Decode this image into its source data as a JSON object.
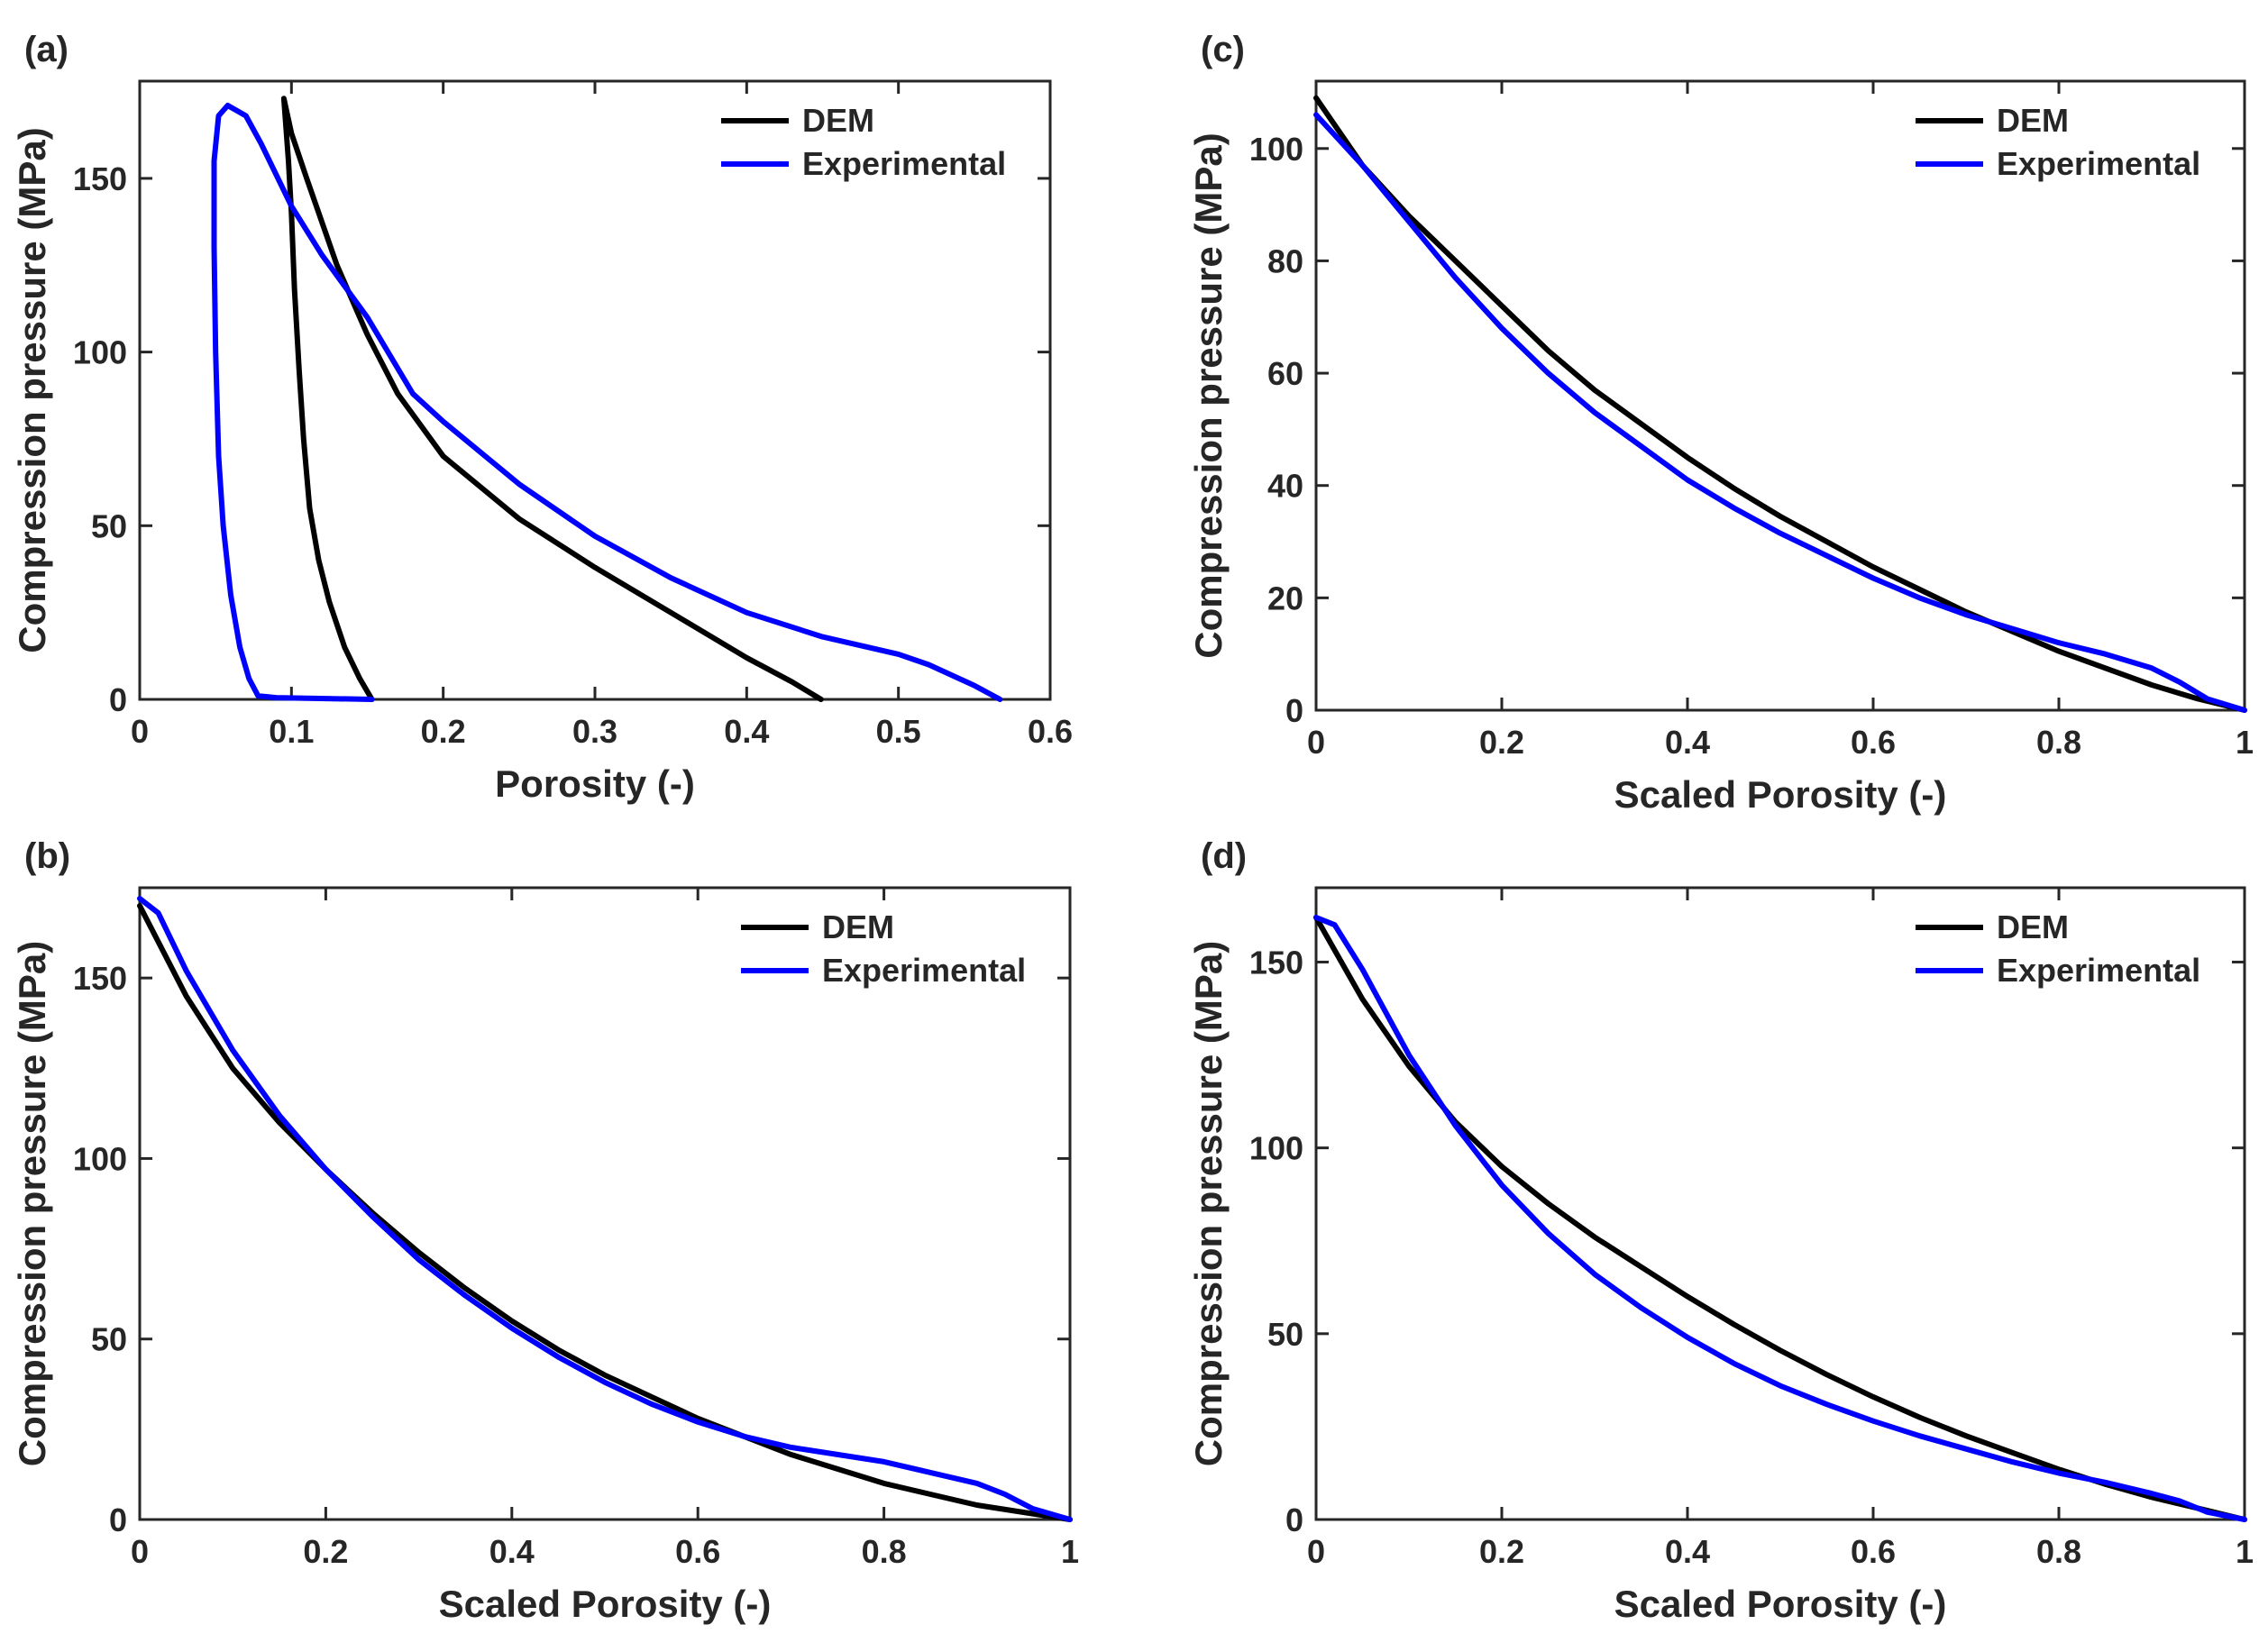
{
  "chart_data": [
    {
      "id": "a",
      "panel_label": "(a)",
      "type": "line",
      "xlabel": "Porosity (-)",
      "ylabel": "Compression pressure (MPa)",
      "xlim": [
        0,
        0.6
      ],
      "ylim": [
        0,
        178
      ],
      "xticks": [
        0,
        0.1,
        0.2,
        0.3,
        0.4,
        0.5,
        0.6
      ],
      "xtick_labels": [
        "0",
        "0.1",
        "0.2",
        "0.3",
        "0.4",
        "0.5",
        "0.6"
      ],
      "yticks": [
        0,
        50,
        100,
        150
      ],
      "ytick_labels": [
        "0",
        "50",
        "100",
        "150"
      ],
      "legend_position": "top-right",
      "series": [
        {
          "name": "DEM",
          "color": "#000000",
          "points": [
            [
              0.449,
              0
            ],
            [
              0.43,
              5
            ],
            [
              0.4,
              12
            ],
            [
              0.35,
              25
            ],
            [
              0.3,
              38
            ],
            [
              0.25,
              52
            ],
            [
              0.2,
              70
            ],
            [
              0.17,
              88
            ],
            [
              0.15,
              105
            ],
            [
              0.13,
              125
            ],
            [
              0.11,
              150
            ],
            [
              0.1,
              163
            ],
            [
              0.095,
              173
            ],
            [
              0.098,
              155
            ],
            [
              0.1,
              140
            ],
            [
              0.102,
              118
            ],
            [
              0.105,
              95
            ],
            [
              0.108,
              75
            ],
            [
              0.112,
              55
            ],
            [
              0.118,
              40
            ],
            [
              0.125,
              28
            ],
            [
              0.135,
              15
            ],
            [
              0.145,
              6
            ],
            [
              0.153,
              0
            ]
          ]
        },
        {
          "name": "Experimental",
          "color": "#0000ff",
          "points": [
            [
              0.567,
              0
            ],
            [
              0.55,
              4
            ],
            [
              0.52,
              10
            ],
            [
              0.5,
              13
            ],
            [
              0.45,
              18
            ],
            [
              0.4,
              25
            ],
            [
              0.35,
              35
            ],
            [
              0.3,
              47
            ],
            [
              0.25,
              62
            ],
            [
              0.2,
              80
            ],
            [
              0.18,
              88
            ],
            [
              0.15,
              110
            ],
            [
              0.12,
              128
            ],
            [
              0.1,
              142
            ],
            [
              0.08,
              160
            ],
            [
              0.07,
              168
            ],
            [
              0.058,
              171
            ],
            [
              0.052,
              168
            ],
            [
              0.049,
              155
            ],
            [
              0.049,
              130
            ],
            [
              0.05,
              100
            ],
            [
              0.052,
              70
            ],
            [
              0.055,
              50
            ],
            [
              0.06,
              30
            ],
            [
              0.066,
              15
            ],
            [
              0.072,
              6
            ],
            [
              0.078,
              1
            ],
            [
              0.09,
              0.5
            ],
            [
              0.153,
              0
            ]
          ]
        }
      ]
    },
    {
      "id": "b",
      "panel_label": "(b)",
      "type": "line",
      "xlabel": "Scaled Porosity (-)",
      "ylabel": "Compression pressure (MPa)",
      "xlim": [
        0,
        1
      ],
      "ylim": [
        0,
        175
      ],
      "xticks": [
        0,
        0.2,
        0.4,
        0.6,
        0.8,
        1
      ],
      "xtick_labels": [
        "0",
        "0.2",
        "0.4",
        "0.6",
        "0.8",
        "1"
      ],
      "yticks": [
        0,
        50,
        100,
        150
      ],
      "ytick_labels": [
        "0",
        "50",
        "100",
        "150"
      ],
      "legend_position": "top-right",
      "series": [
        {
          "name": "DEM",
          "color": "#000000",
          "points": [
            [
              0,
              170
            ],
            [
              0.05,
              145
            ],
            [
              0.1,
              125
            ],
            [
              0.15,
              110
            ],
            [
              0.2,
              97
            ],
            [
              0.25,
              85
            ],
            [
              0.3,
              74
            ],
            [
              0.35,
              64
            ],
            [
              0.4,
              55
            ],
            [
              0.45,
              47
            ],
            [
              0.5,
              40
            ],
            [
              0.55,
              34
            ],
            [
              0.6,
              28
            ],
            [
              0.65,
              23
            ],
            [
              0.7,
              18
            ],
            [
              0.75,
              14
            ],
            [
              0.8,
              10
            ],
            [
              0.85,
              7
            ],
            [
              0.9,
              4
            ],
            [
              0.95,
              2
            ],
            [
              1.0,
              0
            ]
          ]
        },
        {
          "name": "Experimental",
          "color": "#0000ff",
          "points": [
            [
              0,
              172
            ],
            [
              0.02,
              168
            ],
            [
              0.05,
              152
            ],
            [
              0.1,
              130
            ],
            [
              0.15,
              112
            ],
            [
              0.2,
              97
            ],
            [
              0.25,
              84
            ],
            [
              0.3,
              72
            ],
            [
              0.35,
              62
            ],
            [
              0.4,
              53
            ],
            [
              0.45,
              45
            ],
            [
              0.5,
              38
            ],
            [
              0.55,
              32
            ],
            [
              0.6,
              27
            ],
            [
              0.65,
              23
            ],
            [
              0.7,
              20
            ],
            [
              0.75,
              18
            ],
            [
              0.8,
              16
            ],
            [
              0.85,
              13
            ],
            [
              0.9,
              10
            ],
            [
              0.93,
              7
            ],
            [
              0.96,
              3
            ],
            [
              1.0,
              0
            ]
          ]
        }
      ]
    },
    {
      "id": "c",
      "panel_label": "(c)",
      "type": "line",
      "xlabel": "Scaled Porosity (-)",
      "ylabel": "Compression pressure (MPa)",
      "xlim": [
        0,
        1
      ],
      "ylim": [
        0,
        112
      ],
      "xticks": [
        0,
        0.2,
        0.4,
        0.6,
        0.8,
        1
      ],
      "xtick_labels": [
        "0",
        "0.2",
        "0.4",
        "0.6",
        "0.8",
        "1"
      ],
      "yticks": [
        0,
        20,
        40,
        60,
        80,
        100
      ],
      "ytick_labels": [
        "0",
        "20",
        "40",
        "60",
        "80",
        "100"
      ],
      "legend_position": "top-right",
      "series": [
        {
          "name": "DEM",
          "color": "#000000",
          "points": [
            [
              0,
              109
            ],
            [
              0.05,
              97
            ],
            [
              0.1,
              88
            ],
            [
              0.15,
              80
            ],
            [
              0.2,
              72
            ],
            [
              0.25,
              64
            ],
            [
              0.3,
              57
            ],
            [
              0.35,
              51
            ],
            [
              0.4,
              45
            ],
            [
              0.45,
              39.5
            ],
            [
              0.5,
              34.5
            ],
            [
              0.55,
              30
            ],
            [
              0.6,
              25.5
            ],
            [
              0.65,
              21.5
            ],
            [
              0.7,
              17.5
            ],
            [
              0.75,
              14
            ],
            [
              0.8,
              10.5
            ],
            [
              0.85,
              7.5
            ],
            [
              0.9,
              4.5
            ],
            [
              0.95,
              2
            ],
            [
              1.0,
              0
            ]
          ]
        },
        {
          "name": "Experimental",
          "color": "#0000ff",
          "points": [
            [
              0,
              106
            ],
            [
              0.05,
              97
            ],
            [
              0.1,
              87
            ],
            [
              0.15,
              77
            ],
            [
              0.2,
              68
            ],
            [
              0.25,
              60
            ],
            [
              0.3,
              53
            ],
            [
              0.35,
              47
            ],
            [
              0.4,
              41
            ],
            [
              0.45,
              36
            ],
            [
              0.5,
              31.5
            ],
            [
              0.55,
              27.5
            ],
            [
              0.6,
              23.5
            ],
            [
              0.65,
              20
            ],
            [
              0.7,
              17
            ],
            [
              0.75,
              14.5
            ],
            [
              0.8,
              12
            ],
            [
              0.85,
              10
            ],
            [
              0.9,
              7.5
            ],
            [
              0.93,
              5
            ],
            [
              0.96,
              2
            ],
            [
              1.0,
              0
            ]
          ]
        }
      ]
    },
    {
      "id": "d",
      "panel_label": "(d)",
      "type": "line",
      "xlabel": "Scaled Porosity (-)",
      "ylabel": "Compression pressure (MPa)",
      "xlim": [
        0,
        1
      ],
      "ylim": [
        0,
        170
      ],
      "xticks": [
        0,
        0.2,
        0.4,
        0.6,
        0.8,
        1
      ],
      "xtick_labels": [
        "0",
        "0.2",
        "0.4",
        "0.6",
        "0.8",
        "1"
      ],
      "yticks": [
        0,
        50,
        100,
        150
      ],
      "ytick_labels": [
        "0",
        "50",
        "100",
        "150"
      ],
      "legend_position": "top-right",
      "series": [
        {
          "name": "DEM",
          "color": "#000000",
          "points": [
            [
              0,
              162
            ],
            [
              0.05,
              140
            ],
            [
              0.1,
              122
            ],
            [
              0.15,
              107
            ],
            [
              0.2,
              95
            ],
            [
              0.25,
              85
            ],
            [
              0.3,
              76
            ],
            [
              0.35,
              68
            ],
            [
              0.4,
              60
            ],
            [
              0.45,
              52.5
            ],
            [
              0.5,
              45.5
            ],
            [
              0.55,
              39
            ],
            [
              0.6,
              33
            ],
            [
              0.65,
              27.5
            ],
            [
              0.7,
              22.5
            ],
            [
              0.75,
              18
            ],
            [
              0.8,
              13.5
            ],
            [
              0.85,
              9.5
            ],
            [
              0.9,
              6
            ],
            [
              0.95,
              3
            ],
            [
              1.0,
              0
            ]
          ]
        },
        {
          "name": "Experimental",
          "color": "#0000ff",
          "points": [
            [
              0,
              162
            ],
            [
              0.02,
              160
            ],
            [
              0.05,
              148
            ],
            [
              0.1,
              125
            ],
            [
              0.15,
              106
            ],
            [
              0.2,
              90
            ],
            [
              0.25,
              77
            ],
            [
              0.3,
              66
            ],
            [
              0.35,
              57
            ],
            [
              0.4,
              49
            ],
            [
              0.45,
              42
            ],
            [
              0.5,
              36
            ],
            [
              0.55,
              31
            ],
            [
              0.6,
              26.5
            ],
            [
              0.65,
              22.5
            ],
            [
              0.7,
              19
            ],
            [
              0.75,
              15.5
            ],
            [
              0.8,
              12.5
            ],
            [
              0.85,
              10
            ],
            [
              0.9,
              7
            ],
            [
              0.93,
              5
            ],
            [
              0.96,
              2
            ],
            [
              1.0,
              0
            ]
          ]
        }
      ]
    }
  ]
}
